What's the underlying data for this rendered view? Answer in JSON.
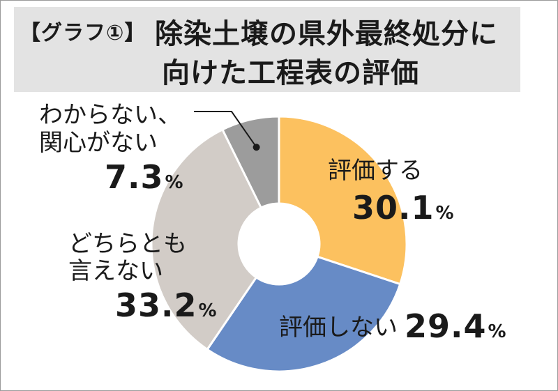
{
  "title": {
    "tag": "【グラフ①】",
    "line1": "除染土壌の県外最終処分に",
    "line2": "向けた工程表の評価"
  },
  "chart_data": {
    "type": "pie",
    "donut": true,
    "start": "12 o'clock, clockwise",
    "unit": "%",
    "slices": [
      {
        "label": "評価する",
        "value": 30.1,
        "value_text": "30.1",
        "color": "#fcc15f"
      },
      {
        "label": "評価しない",
        "value": 29.4,
        "value_text": "29.4",
        "color": "#678bc6"
      },
      {
        "label_lines": [
          "どちらとも",
          "言えない"
        ],
        "label": "どちらとも言えない",
        "value": 33.2,
        "value_text": "33.2",
        "color": "#d2ccc7"
      },
      {
        "label_lines": [
          "わからない、",
          "関心がない"
        ],
        "label": "わからない、関心がない",
        "value": 7.3,
        "value_text": "7.3",
        "color": "#9c9c9c"
      }
    ]
  }
}
